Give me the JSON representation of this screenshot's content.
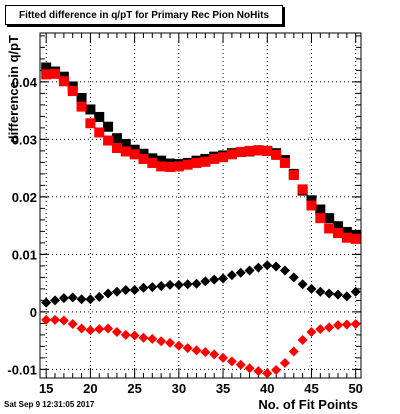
{
  "footer": {
    "timestamp": "Sat Sep  9 12:31:05 2017"
  },
  "chart_data": {
    "type": "scatter",
    "title": "Fitted difference in q/pT for Primary Rec Pion NoHits",
    "xlabel": "No. of Fit Points",
    "ylabel": "difference in q/pT",
    "xlim": [
      14.3,
      50.6
    ],
    "ylim": [
      -0.0115,
      0.0485
    ],
    "xticks": [
      15,
      20,
      25,
      30,
      35,
      40,
      45,
      50
    ],
    "yticks": [
      -0.01,
      0,
      0.01,
      0.02,
      0.03,
      0.04
    ],
    "ytick_labels": [
      "-0.01",
      "0",
      "0.01",
      "0.02",
      "0.03",
      "0.04"
    ],
    "grid": true,
    "colors": {
      "black": "#000000",
      "red": "#ff0000",
      "frame": "#000000"
    },
    "series": [
      {
        "color": "#000000",
        "marker": "square",
        "x": [
          14,
          15,
          16,
          17,
          18,
          19,
          20,
          21,
          22,
          23,
          24,
          25,
          26,
          27,
          28,
          29,
          30,
          31,
          32,
          33,
          34,
          35,
          36,
          37,
          38,
          39,
          40,
          41,
          42,
          43,
          44,
          45,
          46,
          47,
          48,
          49,
          50
        ],
        "y": [
          0.0433,
          0.0425,
          0.0418,
          0.0409,
          0.0392,
          0.0372,
          0.0352,
          0.0339,
          0.0322,
          0.0302,
          0.0292,
          0.0282,
          0.0275,
          0.0267,
          0.0263,
          0.0258,
          0.0257,
          0.0259,
          0.0263,
          0.0266,
          0.027,
          0.0272,
          0.0276,
          0.0278,
          0.0279,
          0.0281,
          0.028,
          0.0276,
          0.0264,
          0.024,
          0.0211,
          0.0194,
          0.0178,
          0.0163,
          0.0149,
          0.0139,
          0.0134
        ]
      },
      {
        "color": "#ff0000",
        "marker": "square",
        "x": [
          14,
          15,
          16,
          17,
          18,
          19,
          20,
          21,
          22,
          23,
          24,
          25,
          26,
          27,
          28,
          29,
          30,
          31,
          32,
          33,
          34,
          35,
          36,
          37,
          38,
          39,
          40,
          41,
          42,
          43,
          44,
          45,
          46,
          47,
          48,
          49,
          50
        ],
        "y": [
          0.0407,
          0.0413,
          0.0414,
          0.0401,
          0.0384,
          0.0357,
          0.0328,
          0.0312,
          0.0298,
          0.0285,
          0.0279,
          0.0274,
          0.0266,
          0.0259,
          0.0253,
          0.0252,
          0.0253,
          0.0256,
          0.0259,
          0.0261,
          0.0266,
          0.0269,
          0.0274,
          0.0278,
          0.028,
          0.0281,
          0.028,
          0.0273,
          0.0259,
          0.0238,
          0.0213,
          0.0185,
          0.0163,
          0.0145,
          0.0137,
          0.0129,
          0.0127
        ]
      },
      {
        "color": "#000000",
        "marker": "diamond",
        "x": [
          14,
          15,
          16,
          17,
          18,
          19,
          20,
          21,
          22,
          23,
          24,
          25,
          26,
          27,
          28,
          29,
          30,
          31,
          32,
          33,
          34,
          35,
          36,
          37,
          38,
          39,
          40,
          41,
          42,
          43,
          44,
          45,
          46,
          47,
          48,
          49,
          50
        ],
        "y": [
          0.0007,
          0.0016,
          0.002,
          0.0024,
          0.0025,
          0.0022,
          0.0022,
          0.0026,
          0.0032,
          0.0035,
          0.0038,
          0.0038,
          0.0042,
          0.0043,
          0.0045,
          0.0047,
          0.0047,
          0.0048,
          0.0049,
          0.0053,
          0.0056,
          0.0058,
          0.0064,
          0.0068,
          0.0072,
          0.0077,
          0.0081,
          0.0079,
          0.0072,
          0.006,
          0.0048,
          0.004,
          0.0035,
          0.0032,
          0.003,
          0.0027,
          0.0035
        ]
      },
      {
        "color": "#ff0000",
        "marker": "diamond",
        "x": [
          14,
          15,
          16,
          17,
          18,
          19,
          20,
          21,
          22,
          23,
          24,
          25,
          26,
          27,
          28,
          29,
          30,
          31,
          32,
          33,
          34,
          35,
          36,
          37,
          38,
          39,
          40,
          41,
          42,
          43,
          44,
          45,
          46,
          47,
          48,
          49,
          50
        ],
        "y": [
          -0.0017,
          -0.0014,
          -0.0014,
          -0.0015,
          -0.0021,
          -0.0029,
          -0.0032,
          -0.003,
          -0.0029,
          -0.0035,
          -0.004,
          -0.0041,
          -0.0045,
          -0.0047,
          -0.0051,
          -0.0054,
          -0.0059,
          -0.0063,
          -0.0067,
          -0.007,
          -0.0074,
          -0.008,
          -0.0086,
          -0.0092,
          -0.0098,
          -0.0103,
          -0.0107,
          -0.0101,
          -0.0089,
          -0.0069,
          -0.0049,
          -0.0035,
          -0.003,
          -0.0027,
          -0.0023,
          -0.0022,
          -0.0021
        ]
      }
    ]
  }
}
